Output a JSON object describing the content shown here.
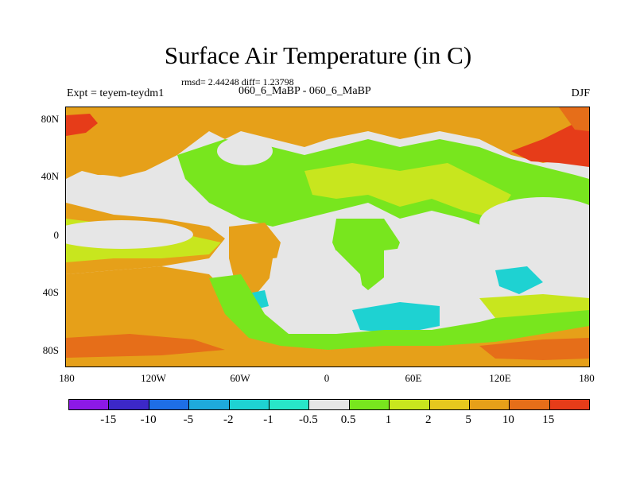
{
  "title": "Surface Air Temperature (in C)",
  "stats": "rmsd= 2.44248 diff= 1.23798",
  "experiment_label": "Expt = teyem-teydm1",
  "comparison_label": "060_6_MaBP - 060_6_MaBP",
  "season": "DJF",
  "lat_labels": [
    "80N",
    "40N",
    "0",
    "40S",
    "80S"
  ],
  "lon_labels": [
    "180",
    "120W",
    "60W",
    "0",
    "60E",
    "120E",
    "180"
  ],
  "colorbar_labels": [
    "-15",
    "-10",
    "-5",
    "-2",
    "-1",
    "-0.5",
    "0.5",
    "1",
    "2",
    "5",
    "10",
    "15"
  ],
  "colorbar_colors": [
    "#8c19e6",
    "#3c28c8",
    "#1e6ee6",
    "#1eaadc",
    "#1ed2d2",
    "#28e6c8",
    "#e6e6e6",
    "#78e61e",
    "#c8e61e",
    "#e6c81e",
    "#e6a019",
    "#e66e19",
    "#e63c19"
  ],
  "colors": {
    "warm1": "#e6a019",
    "warm2": "#e66e19",
    "warm3": "#e63c19",
    "mild": "#c8e61e",
    "light": "#78e61e",
    "neutral": "#e6e6e6",
    "cool": "#1ed2d2"
  }
}
